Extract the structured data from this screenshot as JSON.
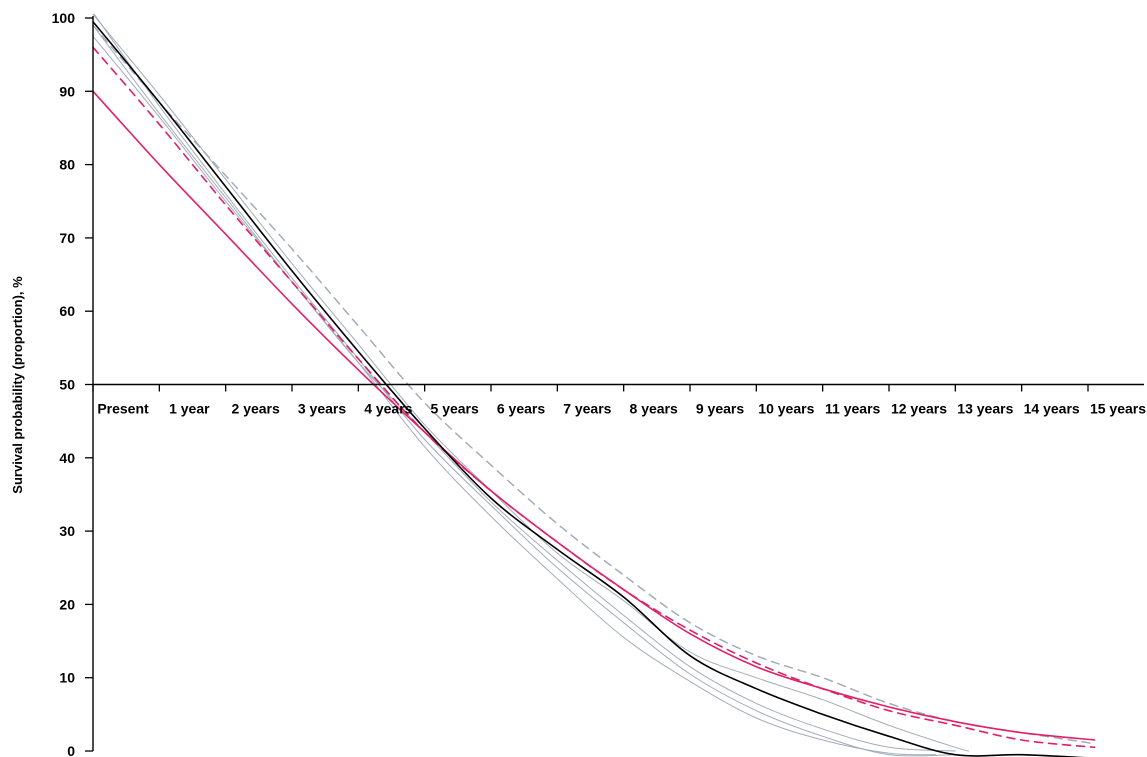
{
  "chart_data": {
    "type": "line",
    "title": "",
    "xlabel": "",
    "ylabel": "Survival probability (proportion), %",
    "x_categories": [
      "Present",
      "1 year",
      "2 years",
      "3 years",
      "4 years",
      "5 years",
      "6 years",
      "7 years",
      "8 years",
      "9 years",
      "10 years",
      "11 years",
      "12 years",
      "13 years",
      "14 years",
      "15 years"
    ],
    "x_range": [
      0,
      15.2
    ],
    "ylim": [
      0,
      100
    ],
    "y_ticks": [
      0,
      10,
      20,
      30,
      40,
      50,
      60,
      70,
      80,
      90,
      100
    ],
    "x_axis_crosses_y_at": 50,
    "grid": false,
    "legend": "none",
    "series": [
      {
        "color": "#a3acb9",
        "dash": false,
        "width": 1,
        "points": [
          [
            0.02,
            100.5
          ],
          [
            1,
            88.0
          ],
          [
            2,
            76.0
          ],
          [
            3,
            64.5
          ],
          [
            4,
            53.5
          ],
          [
            5,
            42.5
          ],
          [
            6,
            33.5
          ],
          [
            7,
            25.0
          ],
          [
            8,
            17.5
          ],
          [
            9,
            10.5
          ],
          [
            10,
            5.5
          ],
          [
            11,
            2.0
          ],
          [
            12,
            -0.5
          ],
          [
            13,
            -0.5
          ]
        ]
      },
      {
        "color": "#a3acb9",
        "dash": false,
        "width": 1,
        "points": [
          [
            0.0,
            99.0
          ],
          [
            1,
            87.0
          ],
          [
            2,
            75.5
          ],
          [
            3,
            64.0
          ],
          [
            4,
            53.0
          ],
          [
            5,
            41.5
          ],
          [
            6,
            32.0
          ],
          [
            7,
            23.5
          ],
          [
            8,
            15.5
          ],
          [
            9,
            9.5
          ],
          [
            10,
            4.5
          ],
          [
            11,
            1.5
          ],
          [
            12,
            -0.3
          ],
          [
            12.7,
            -0.5
          ]
        ]
      },
      {
        "color": "#a3acb9",
        "dash": false,
        "width": 1,
        "points": [
          [
            0.0,
            97.5
          ],
          [
            1,
            86.5
          ],
          [
            2,
            75.0
          ],
          [
            3,
            64.0
          ],
          [
            4,
            53.0
          ],
          [
            5,
            43.5
          ],
          [
            6,
            34.0
          ],
          [
            7,
            26.0
          ],
          [
            8,
            18.5
          ],
          [
            9,
            11.5
          ],
          [
            10,
            6.5
          ],
          [
            11,
            3.0
          ],
          [
            12,
            0.5
          ],
          [
            13,
            0.0
          ]
        ]
      },
      {
        "color": "#a3acb9",
        "dash": false,
        "width": 1,
        "points": [
          [
            0.0,
            100.5
          ],
          [
            1,
            89.5
          ],
          [
            2,
            78.0
          ],
          [
            3,
            66.5
          ],
          [
            4,
            55.5
          ],
          [
            5,
            44.5
          ],
          [
            6,
            35.5
          ],
          [
            7,
            27.0
          ],
          [
            8,
            20.5
          ],
          [
            9,
            13.5
          ],
          [
            10,
            10.0
          ],
          [
            11,
            7.0
          ],
          [
            12,
            3.5
          ],
          [
            13,
            0.5
          ],
          [
            13.2,
            0.0
          ]
        ]
      },
      {
        "color": "#a3acb9",
        "dash": true,
        "width": 1.5,
        "points": [
          [
            0.0,
            99.0
          ],
          [
            1,
            88.5
          ],
          [
            2,
            78.5
          ],
          [
            3,
            68.5
          ],
          [
            4,
            58.0
          ],
          [
            5,
            47.5
          ],
          [
            6,
            39.0
          ],
          [
            7,
            31.0
          ],
          [
            8,
            24.0
          ],
          [
            9,
            17.5
          ],
          [
            10,
            13.0
          ],
          [
            11,
            10.0
          ],
          [
            12,
            6.5
          ],
          [
            13,
            4.0
          ],
          [
            14,
            2.5
          ],
          [
            15.1,
            1.0
          ]
        ]
      },
      {
        "color": "#e0206a",
        "dash": false,
        "width": 1.6,
        "points": [
          [
            0.0,
            90.0
          ],
          [
            1,
            80.0
          ],
          [
            2,
            70.5
          ],
          [
            3,
            61.0
          ],
          [
            4,
            52.0
          ],
          [
            5,
            43.5
          ],
          [
            6,
            35.5
          ],
          [
            7,
            28.5
          ],
          [
            8,
            22.0
          ],
          [
            9,
            16.0
          ],
          [
            10,
            11.5
          ],
          [
            11,
            8.5
          ],
          [
            12,
            6.0
          ],
          [
            13,
            4.0
          ],
          [
            14,
            2.5
          ],
          [
            15.1,
            1.5
          ]
        ]
      },
      {
        "color": "#e0206a",
        "dash": true,
        "width": 1.6,
        "points": [
          [
            0.0,
            96.0
          ],
          [
            1,
            85.5
          ],
          [
            2,
            74.5
          ],
          [
            3,
            64.0
          ],
          [
            4,
            53.5
          ],
          [
            5,
            43.5
          ],
          [
            6,
            35.5
          ],
          [
            7,
            28.5
          ],
          [
            8,
            22.0
          ],
          [
            9,
            16.5
          ],
          [
            10,
            12.0
          ],
          [
            11,
            8.5
          ],
          [
            12,
            5.5
          ],
          [
            13,
            3.5
          ],
          [
            14,
            1.5
          ],
          [
            15.1,
            0.5
          ]
        ]
      },
      {
        "color": "#000000",
        "dash": false,
        "width": 1.6,
        "points": [
          [
            0.0,
            99.5
          ],
          [
            1,
            88.5
          ],
          [
            2,
            77.0
          ],
          [
            3,
            65.5
          ],
          [
            4,
            54.5
          ],
          [
            5,
            44.0
          ],
          [
            6,
            34.5
          ],
          [
            7,
            27.5
          ],
          [
            8,
            21.0
          ],
          [
            9,
            13.0
          ],
          [
            10,
            8.5
          ],
          [
            11,
            5.0
          ],
          [
            12,
            2.0
          ],
          [
            13,
            -0.5
          ],
          [
            14,
            -0.5
          ],
          [
            15.1,
            -1.0
          ]
        ]
      }
    ]
  }
}
